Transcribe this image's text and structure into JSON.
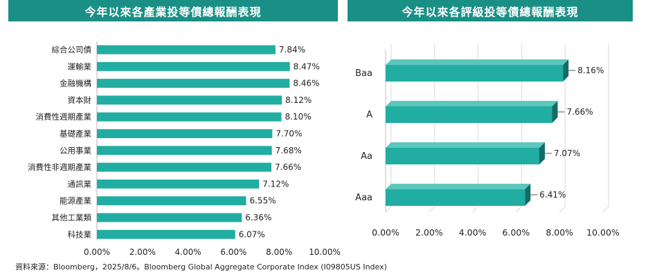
{
  "chart_data": [
    {
      "type": "bar",
      "orientation": "horizontal",
      "title": "今年以來各產業投等債總報酬表現",
      "categories": [
        "綜合公司債",
        "運輸業",
        "金融機構",
        "資本財",
        "消費性週期產業",
        "基礎產業",
        "公用事業",
        "消費性非週期產業",
        "通訊業",
        "能源產業",
        "其他工業類",
        "科技業"
      ],
      "values": [
        7.84,
        8.47,
        8.46,
        8.12,
        8.1,
        7.7,
        7.68,
        7.66,
        7.12,
        6.55,
        6.36,
        6.07
      ],
      "value_labels": [
        "7.84%",
        "8.47%",
        "8.46%",
        "8.12%",
        "8.10%",
        "7.70%",
        "7.68%",
        "7.66%",
        "7.12%",
        "6.55%",
        "6.36%",
        "6.07%"
      ],
      "xlim": [
        0,
        10
      ],
      "x_ticks": [
        "0.00%",
        "2.00%",
        "4.00%",
        "6.00%",
        "8.00%",
        "10.00%"
      ],
      "grid": false,
      "bar_color": "#21ada2"
    },
    {
      "type": "bar",
      "orientation": "horizontal",
      "style": "3d",
      "title": "今年以來各評級投等債總報酬表現",
      "categories": [
        "Baa",
        "A",
        "Aa",
        "Aaa"
      ],
      "values": [
        8.16,
        7.66,
        7.07,
        6.41
      ],
      "value_labels": [
        "8.16%",
        "7.66%",
        "7.07%",
        "6.41%"
      ],
      "xlim": [
        0,
        10
      ],
      "x_ticks": [
        "0.00%",
        "2.00%",
        "4.00%",
        "6.00%",
        "8.00%",
        "10.00%"
      ],
      "grid": true,
      "bar_color": "#21ada2"
    }
  ],
  "source": "資料來源：Bloomberg，2025/8/6。Bloomberg Global Aggregate Corporate Index (I09805US Index)",
  "colors": {
    "header_bg": "#1a8f86",
    "header_text": "#ffffff",
    "bar": "#21ada2",
    "bar_side": "#126d66",
    "bar_top": "#5cc7bd"
  }
}
